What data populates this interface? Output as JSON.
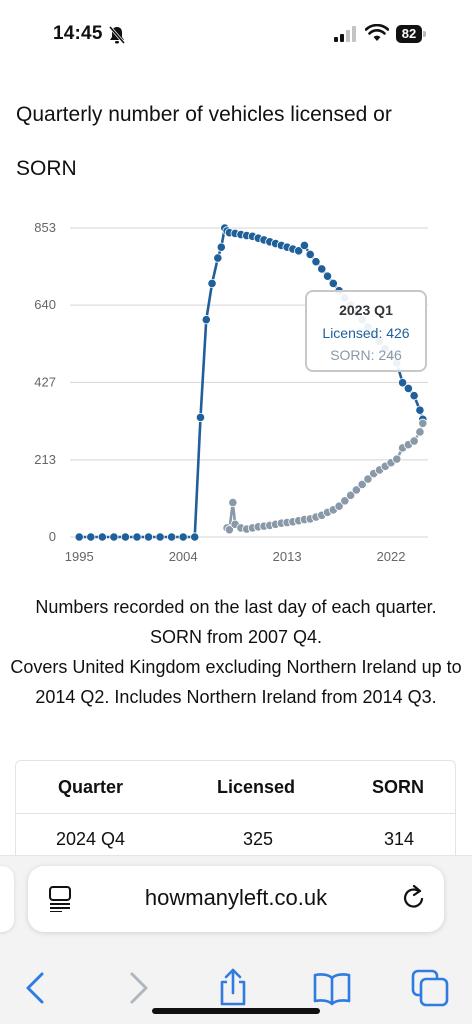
{
  "status": {
    "time": "14:45",
    "battery": "82"
  },
  "page": {
    "title": "Quarterly number of vehicles licensed or SORN"
  },
  "tooltip": {
    "title": "2023 Q1",
    "licensed": "Licensed: 426",
    "sorn": "SORN: 246"
  },
  "notes": {
    "line1": "Numbers recorded on the last day of each quarter. SORN from 2007 Q4.",
    "line2": "Covers United Kingdom excluding Northern Ireland up to 2014 Q2. Includes Northern Ireland from 2014 Q3."
  },
  "table": {
    "headers": [
      "Quarter",
      "Licensed",
      "SORN"
    ],
    "rows": [
      [
        "2024 Q4",
        "325",
        "314"
      ]
    ]
  },
  "browser": {
    "url": "howmanyleft.co.uk"
  },
  "chart_data": {
    "type": "scatter",
    "yticks": [
      "0",
      "213",
      "427",
      "640",
      "853"
    ],
    "xticks": [
      "1995",
      "2004",
      "2013",
      "2022"
    ],
    "ylim": [
      0,
      853
    ],
    "xlim": [
      1994.2,
      2025.2
    ],
    "grid": true,
    "colors": {
      "licensed": "#1f5f9a",
      "sorn": "#8a99a8"
    },
    "series": [
      {
        "key": "licensed",
        "x": [
          1995,
          1996,
          1997,
          1998,
          1999,
          2000,
          2001,
          2002,
          2003,
          2004,
          2005,
          2005.5,
          2006,
          2006.5,
          2007,
          2007.3,
          2007.6,
          2007.8,
          2008,
          2008.5,
          2009,
          2009.5,
          2010,
          2010.5,
          2011,
          2011.5,
          2012,
          2012.5,
          2013,
          2013.5,
          2014,
          2014.5,
          2015,
          2015.5,
          2016,
          2016.5,
          2017,
          2017.5,
          2018,
          2018.5,
          2019,
          2019.5,
          2020,
          2020.5,
          2021,
          2021.5,
          2022,
          2022.5,
          2023,
          2023.5,
          2024,
          2024.5,
          2024.75
        ],
        "y": [
          0,
          0,
          0,
          0,
          0,
          0,
          0,
          0,
          0,
          0,
          0,
          330,
          600,
          700,
          770,
          800,
          853,
          845,
          840,
          838,
          835,
          832,
          830,
          825,
          820,
          815,
          810,
          805,
          800,
          795,
          790,
          805,
          780,
          760,
          740,
          720,
          700,
          680,
          660,
          640,
          620,
          600,
          580,
          560,
          540,
          520,
          500,
          480,
          426,
          410,
          390,
          350,
          325
        ]
      },
      {
        "key": "sorn",
        "x": [
          2007.8,
          2008,
          2008.3,
          2008.5,
          2009,
          2009.5,
          2010,
          2010.5,
          2011,
          2011.5,
          2012,
          2012.5,
          2013,
          2013.5,
          2014,
          2014.5,
          2015,
          2015.5,
          2016,
          2016.5,
          2017,
          2017.5,
          2018,
          2018.5,
          2019,
          2019.5,
          2020,
          2020.5,
          2021,
          2021.5,
          2022,
          2022.5,
          2023,
          2023.5,
          2024,
          2024.5,
          2024.75
        ],
        "y": [
          25,
          20,
          95,
          35,
          25,
          22,
          25,
          28,
          30,
          32,
          35,
          38,
          40,
          42,
          45,
          48,
          50,
          55,
          60,
          68,
          75,
          85,
          100,
          115,
          130,
          145,
          160,
          175,
          185,
          195,
          205,
          215,
          246,
          255,
          265,
          290,
          314
        ]
      }
    ]
  }
}
